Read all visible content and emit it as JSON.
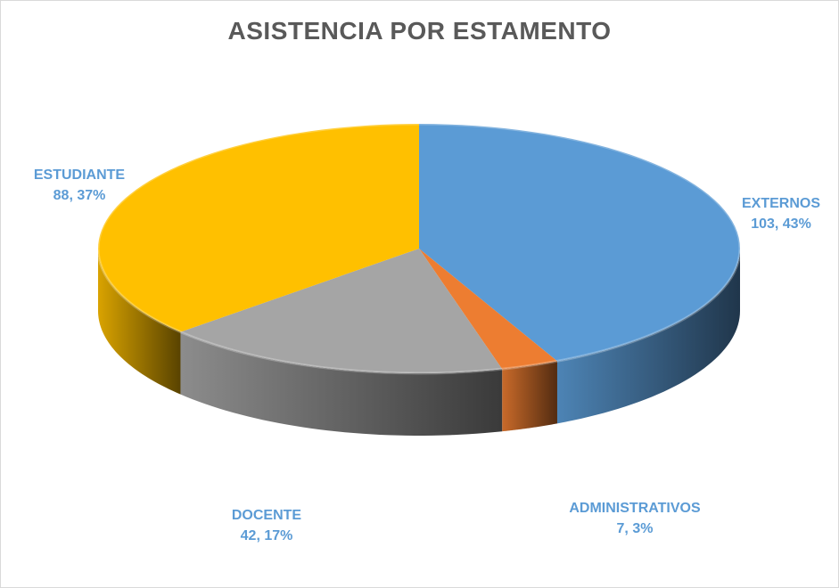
{
  "chart_data": {
    "type": "pie",
    "title": "ASISTENCIA POR ESTAMENTO",
    "slices": [
      {
        "label": "EXTERNOS",
        "value": 103,
        "percent": "43%",
        "display": "103, 43%",
        "color": "#5b9bd5"
      },
      {
        "label": "ADMINISTRATIVOS",
        "value": 7,
        "percent": "3%",
        "display": "7, 3%",
        "color": "#ed7d31"
      },
      {
        "label": "DOCENTE",
        "value": 42,
        "percent": "17%",
        "display": "42, 17%",
        "color": "#a5a5a5"
      },
      {
        "label": "ESTUDIANTE",
        "value": 88,
        "percent": "37%",
        "display": "88, 37%",
        "color": "#ffc000"
      }
    ],
    "label_color": "#5b9bd5"
  }
}
